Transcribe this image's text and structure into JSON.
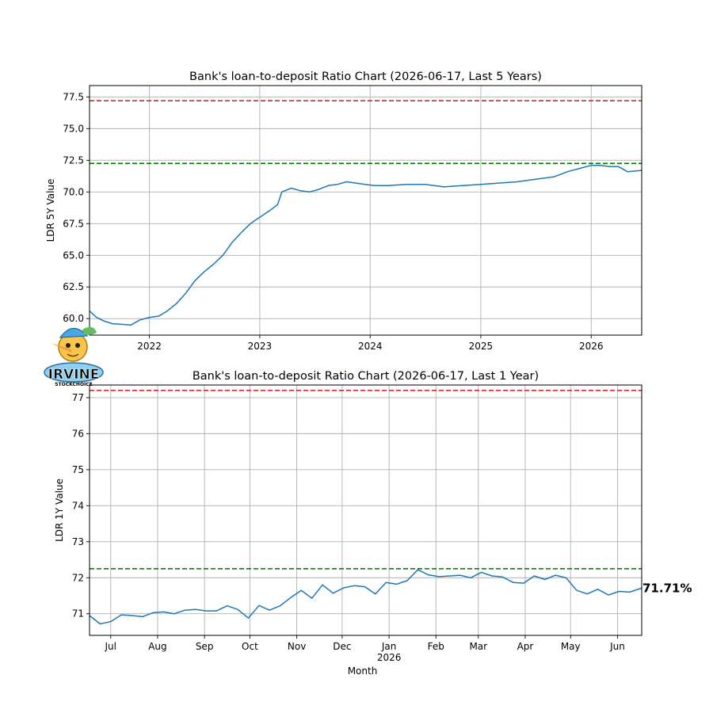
{
  "colors": {
    "line": "#1f77b4",
    "upper_ref": "#d62728",
    "lower_ref": "#007000",
    "grid": "#b0b0b0"
  },
  "logo": {
    "name": "IRVINE",
    "sub": "STOCKCHOICE"
  },
  "chart_data": [
    {
      "type": "line",
      "title": "Bank's loan-to-deposit Ratio Chart (2026-06-17, Last 5 Years)",
      "ylabel": "LDR 5Y Value",
      "xlabel": "",
      "ylim": [
        58.7,
        78.4
      ],
      "xlim": [
        "2021-06-17",
        "2026-06-17"
      ],
      "yticks": [
        60.0,
        62.5,
        65.0,
        67.5,
        70.0,
        72.5,
        75.0,
        77.5
      ],
      "ytick_labels": [
        "60.0",
        "62.5",
        "65.0",
        "67.5",
        "70.0",
        "72.5",
        "75.0",
        "77.5"
      ],
      "xticks": [
        "2022-01-01",
        "2023-01-01",
        "2024-01-01",
        "2025-01-01",
        "2026-01-01"
      ],
      "xtick_labels": [
        "2022",
        "2023",
        "2024",
        "2025",
        "2026"
      ],
      "ref_lines": [
        {
          "y": 77.2,
          "color": "red",
          "style": "dashed"
        },
        {
          "y": 72.25,
          "color": "green",
          "style": "dashed"
        }
      ],
      "grid": true,
      "series": [
        {
          "points": [
            [
              "2021-06-17",
              60.6
            ],
            [
              "2021-07-10",
              60.1
            ],
            [
              "2021-08-05",
              59.8
            ],
            [
              "2021-09-01",
              59.6
            ],
            [
              "2021-10-01",
              59.55
            ],
            [
              "2021-11-01",
              59.5
            ],
            [
              "2021-12-01",
              59.9
            ],
            [
              "2022-01-01",
              60.1
            ],
            [
              "2022-02-01",
              60.2
            ],
            [
              "2022-03-01",
              60.6
            ],
            [
              "2022-04-01",
              61.2
            ],
            [
              "2022-05-01",
              62.0
            ],
            [
              "2022-06-01",
              63.0
            ],
            [
              "2022-07-01",
              63.7
            ],
            [
              "2022-08-01",
              64.3
            ],
            [
              "2022-09-01",
              65.0
            ],
            [
              "2022-10-01",
              66.0
            ],
            [
              "2022-11-01",
              66.8
            ],
            [
              "2022-12-01",
              67.5
            ],
            [
              "2023-01-01",
              68.0
            ],
            [
              "2023-02-01",
              68.5
            ],
            [
              "2023-03-01",
              69.0
            ],
            [
              "2023-03-15",
              70.0
            ],
            [
              "2023-04-15",
              70.3
            ],
            [
              "2023-05-15",
              70.1
            ],
            [
              "2023-06-15",
              70.0
            ],
            [
              "2023-07-15",
              70.2
            ],
            [
              "2023-08-15",
              70.5
            ],
            [
              "2023-09-15",
              70.6
            ],
            [
              "2023-10-15",
              70.8
            ],
            [
              "2023-11-15",
              70.7
            ],
            [
              "2023-12-15",
              70.6
            ],
            [
              "2024-01-15",
              70.5
            ],
            [
              "2024-03-01",
              70.5
            ],
            [
              "2024-05-01",
              70.6
            ],
            [
              "2024-07-01",
              70.6
            ],
            [
              "2024-09-01",
              70.4
            ],
            [
              "2024-11-01",
              70.5
            ],
            [
              "2025-01-01",
              70.6
            ],
            [
              "2025-03-01",
              70.7
            ],
            [
              "2025-05-01",
              70.8
            ],
            [
              "2025-07-01",
              71.0
            ],
            [
              "2025-09-01",
              71.2
            ],
            [
              "2025-10-15",
              71.6
            ],
            [
              "2025-12-01",
              71.9
            ],
            [
              "2026-01-01",
              72.1
            ],
            [
              "2026-02-01",
              72.1
            ],
            [
              "2026-03-01",
              72.0
            ],
            [
              "2026-04-01",
              72.0
            ],
            [
              "2026-05-01",
              71.6
            ],
            [
              "2026-06-17",
              71.7
            ]
          ]
        }
      ]
    },
    {
      "type": "line",
      "title": "Bank's loan-to-deposit Ratio Chart (2026-06-17, Last 1 Year)",
      "ylabel": "LDR 1Y Value",
      "xlabel": "Month",
      "ylim": [
        70.4,
        77.35
      ],
      "xlim": [
        "2025-06-17",
        "2026-06-17"
      ],
      "yticks": [
        71,
        72,
        73,
        74,
        75,
        76,
        77
      ],
      "ytick_labels": [
        "71",
        "72",
        "73",
        "74",
        "75",
        "76",
        "77"
      ],
      "xticks": [
        "2025-07-01",
        "2025-08-01",
        "2025-09-01",
        "2025-10-01",
        "2025-11-01",
        "2025-12-01",
        "2026-01-01",
        "2026-02-01",
        "2026-03-01",
        "2026-04-01",
        "2026-05-01",
        "2026-06-01"
      ],
      "xtick_labels": [
        "Jul",
        "Aug",
        "Sep",
        "Oct",
        "Nov",
        "Dec",
        "Jan",
        "Feb",
        "Mar",
        "Apr",
        "May",
        "Jun"
      ],
      "year_label": "2026",
      "ref_lines": [
        {
          "y": 77.2,
          "color": "red",
          "style": "dashed"
        },
        {
          "y": 72.25,
          "color": "green",
          "style": "dashed"
        }
      ],
      "grid": true,
      "last_value_label": "71.71%",
      "series": [
        {
          "points": [
            [
              "2025-06-17",
              70.95
            ],
            [
              "2025-06-24",
              70.72
            ],
            [
              "2025-07-01",
              70.78
            ],
            [
              "2025-07-08",
              70.97
            ],
            [
              "2025-07-15",
              70.95
            ],
            [
              "2025-07-22",
              70.92
            ],
            [
              "2025-07-29",
              71.03
            ],
            [
              "2025-08-05",
              71.05
            ],
            [
              "2025-08-12",
              71.0
            ],
            [
              "2025-08-19",
              71.1
            ],
            [
              "2025-08-26",
              71.12
            ],
            [
              "2025-09-02",
              71.08
            ],
            [
              "2025-09-09",
              71.08
            ],
            [
              "2025-09-16",
              71.22
            ],
            [
              "2025-09-23",
              71.12
            ],
            [
              "2025-09-30",
              70.88
            ],
            [
              "2025-10-07",
              71.23
            ],
            [
              "2025-10-14",
              71.1
            ],
            [
              "2025-10-21",
              71.22
            ],
            [
              "2025-10-28",
              71.45
            ],
            [
              "2025-11-04",
              71.65
            ],
            [
              "2025-11-11",
              71.43
            ],
            [
              "2025-11-18",
              71.8
            ],
            [
              "2025-11-25",
              71.57
            ],
            [
              "2025-12-02",
              71.72
            ],
            [
              "2025-12-09",
              71.78
            ],
            [
              "2025-12-16",
              71.75
            ],
            [
              "2025-12-23",
              71.55
            ],
            [
              "2025-12-30",
              71.87
            ],
            [
              "2026-01-06",
              71.82
            ],
            [
              "2026-01-13",
              71.92
            ],
            [
              "2026-01-20",
              72.22
            ],
            [
              "2026-01-27",
              72.08
            ],
            [
              "2026-02-03",
              72.03
            ],
            [
              "2026-02-10",
              72.05
            ],
            [
              "2026-02-17",
              72.07
            ],
            [
              "2026-02-24",
              72.0
            ],
            [
              "2026-03-03",
              72.15
            ],
            [
              "2026-03-10",
              72.05
            ],
            [
              "2026-03-17",
              72.02
            ],
            [
              "2026-03-24",
              71.87
            ],
            [
              "2026-03-31",
              71.85
            ],
            [
              "2026-04-07",
              72.05
            ],
            [
              "2026-04-14",
              71.95
            ],
            [
              "2026-04-21",
              72.07
            ],
            [
              "2026-04-28",
              72.0
            ],
            [
              "2026-05-05",
              71.65
            ],
            [
              "2026-05-12",
              71.55
            ],
            [
              "2026-05-19",
              71.68
            ],
            [
              "2026-05-26",
              71.52
            ],
            [
              "2026-06-02",
              71.62
            ],
            [
              "2026-06-09",
              71.6
            ],
            [
              "2026-06-17",
              71.71
            ]
          ]
        }
      ]
    }
  ]
}
